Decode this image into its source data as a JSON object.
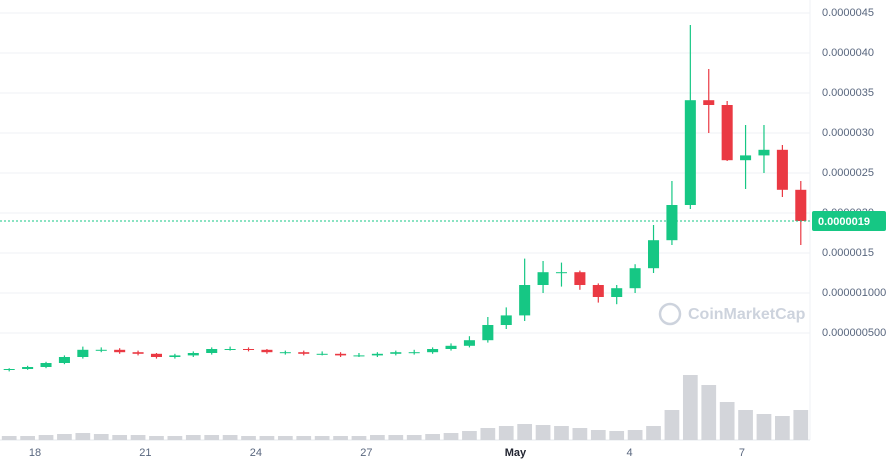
{
  "chart_data": {
    "type": "candlestick",
    "watermark": "CoinMarketCap",
    "current_price": {
      "value": 1.9e-06,
      "label": "0.0000019"
    },
    "up_color": "#16c784",
    "down_color": "#ea3943",
    "volume_color": "#d3d5da",
    "xlim": [
      -0.5,
      43.5
    ],
    "xticks": [
      {
        "value": 1.4,
        "label": "18"
      },
      {
        "value": 7.4,
        "label": "21"
      },
      {
        "value": 13.4,
        "label": "24"
      },
      {
        "value": 19.4,
        "label": "27"
      },
      {
        "value": 27.5,
        "label": "May"
      },
      {
        "value": 33.7,
        "label": "4"
      },
      {
        "value": 39.8,
        "label": "7"
      }
    ],
    "ylim": [
      0,
      4.6e-06
    ],
    "yticks": [
      {
        "value": 4.5e-06,
        "label": "0.0000045"
      },
      {
        "value": 4e-06,
        "label": "0.0000040"
      },
      {
        "value": 3.5e-06,
        "label": "0.0000035"
      },
      {
        "value": 3e-06,
        "label": "0.0000030"
      },
      {
        "value": 2.5e-06,
        "label": "0.0000025"
      },
      {
        "value": 2e-06,
        "label": "0.0000020"
      },
      {
        "value": 1.5e-06,
        "label": "0.0000015"
      },
      {
        "value": 1e-06,
        "label": "0.000001000"
      },
      {
        "value": 5e-07,
        "label": "0.000000500"
      }
    ],
    "grid": true,
    "open": [
      4e-08,
      5e-08,
      7.5e-08,
      1.25e-07,
      2e-07,
      2.9e-07,
      2.9e-07,
      2.6e-07,
      2.4e-07,
      2e-07,
      2.2e-07,
      2.5e-07,
      3e-07,
      3e-07,
      2.9e-07,
      2.6e-07,
      2.6e-07,
      2.4e-07,
      2.4e-07,
      2.2e-07,
      2.2e-07,
      2.4e-07,
      2.6e-07,
      2.6e-07,
      3e-07,
      3.4e-07,
      4.1e-07,
      6e-07,
      7.2e-07,
      1.1e-06,
      1.26e-06,
      1.26e-06,
      1.1e-06,
      9.5e-07,
      1.06e-06,
      1.31e-06,
      1.66e-06,
      2.1e-06,
      3.41e-06,
      3.35e-06,
      2.66e-06,
      2.72e-06,
      2.79e-06,
      2.29e-06
    ],
    "high": [
      6e-08,
      9e-08,
      1.4e-07,
      2.2e-07,
      3.3e-07,
      3.2e-07,
      3.1e-07,
      2.8e-07,
      2.5e-07,
      2.4e-07,
      2.7e-07,
      3.2e-07,
      3.3e-07,
      3.2e-07,
      3e-07,
      2.8e-07,
      2.8e-07,
      2.7e-07,
      2.6e-07,
      2.5e-07,
      2.6e-07,
      2.8e-07,
      2.9e-07,
      3.2e-07,
      3.7e-07,
      4.6e-07,
      7e-07,
      8.2e-07,
      1.43e-06,
      1.4e-06,
      1.38e-06,
      1.28e-06,
      1.12e-06,
      1.1e-06,
      1.36e-06,
      1.85e-06,
      2.4e-06,
      4.35e-06,
      3.8e-06,
      3.4e-06,
      3.1e-06,
      3.1e-06,
      2.85e-06,
      2.4e-06
    ],
    "low": [
      2e-08,
      4e-08,
      6e-08,
      1.1e-07,
      1.8e-07,
      2.6e-07,
      2.4e-07,
      2.2e-07,
      1.8e-07,
      1.8e-07,
      2e-07,
      2.3e-07,
      2.8e-07,
      2.7e-07,
      2.4e-07,
      2.3e-07,
      2.2e-07,
      2.2e-07,
      2e-07,
      2e-07,
      2e-07,
      2.2e-07,
      2.3e-07,
      2.4e-07,
      2.8e-07,
      3.2e-07,
      3.8e-07,
      5.5e-07,
      6.5e-07,
      1e-06,
      1.08e-06,
      1.04e-06,
      8.8e-07,
      8.6e-07,
      1e-06,
      1.25e-06,
      1.6e-06,
      2.05e-06,
      3e-06,
      2.65e-06,
      2.3e-06,
      2.5e-06,
      2.2e-06,
      1.6e-06
    ],
    "close": [
      5e-08,
      7.5e-08,
      1.25e-07,
      2e-07,
      2.9e-07,
      2.9e-07,
      2.6e-07,
      2.4e-07,
      2e-07,
      2.2e-07,
      2.5e-07,
      3e-07,
      3e-07,
      2.9e-07,
      2.6e-07,
      2.6e-07,
      2.4e-07,
      2.4e-07,
      2.2e-07,
      2.2e-07,
      2.4e-07,
      2.6e-07,
      2.6e-07,
      3e-07,
      3.4e-07,
      4.1e-07,
      6e-07,
      7.2e-07,
      1.1e-06,
      1.26e-06,
      1.26e-06,
      1.1e-06,
      9.5e-07,
      1.06e-06,
      1.31e-06,
      1.66e-06,
      2.1e-06,
      3.41e-06,
      3.35e-06,
      2.66e-06,
      2.72e-06,
      2.79e-06,
      2.29e-06,
      1.9e-06
    ],
    "vlim": [
      0,
      70
    ],
    "volume": [
      4,
      4,
      5,
      6,
      7,
      6,
      5,
      5,
      4,
      4,
      5,
      5,
      5,
      4,
      4,
      4,
      4,
      4,
      4,
      4,
      5,
      5,
      5,
      6,
      7,
      9,
      12,
      14,
      16,
      15,
      14,
      12,
      10,
      9,
      10,
      14,
      30,
      65,
      55,
      38,
      30,
      26,
      24,
      30
    ]
  }
}
